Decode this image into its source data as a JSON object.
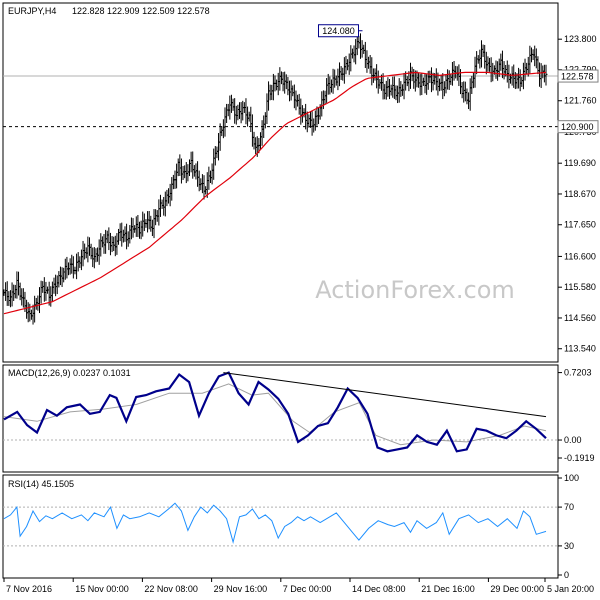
{
  "chart_data": [
    {
      "type": "bar",
      "name": "price",
      "symbol_header": "EURJPY,H4",
      "ohlc_header": "122.828 122.909 122.509 122.578",
      "ylim": [
        113.2,
        124.9
      ],
      "yticks": [
        "123.800",
        "122.790",
        "121.760",
        "120.730",
        "119.690",
        "118.670",
        "117.650",
        "116.600",
        "115.580",
        "114.560",
        "113.540"
      ],
      "ytick_values": [
        123.8,
        122.79,
        121.76,
        120.73,
        119.69,
        118.67,
        117.65,
        116.6,
        115.58,
        114.56,
        113.54
      ],
      "last_price_label": "122.578",
      "last_price": 122.578,
      "level_label": "120.900",
      "level": 120.9,
      "peak_label": "124.080",
      "peak": 124.08,
      "price_path": [
        [
          0,
          115.4
        ],
        [
          4,
          115.2
        ],
        [
          8,
          115.7
        ],
        [
          12,
          115.1
        ],
        [
          16,
          114.6
        ],
        [
          20,
          115.0
        ],
        [
          24,
          115.6
        ],
        [
          28,
          115.3
        ],
        [
          32,
          115.7
        ],
        [
          36,
          116.0
        ],
        [
          40,
          116.3
        ],
        [
          44,
          116.2
        ],
        [
          48,
          116.6
        ],
        [
          52,
          116.9
        ],
        [
          56,
          116.5
        ],
        [
          60,
          117.0
        ],
        [
          64,
          117.2
        ],
        [
          68,
          116.9
        ],
        [
          72,
          117.4
        ],
        [
          76,
          117.2
        ],
        [
          80,
          117.6
        ],
        [
          84,
          117.5
        ],
        [
          88,
          117.8
        ],
        [
          92,
          117.6
        ],
        [
          96,
          118.2
        ],
        [
          100,
          118.4
        ],
        [
          104,
          118.9
        ],
        [
          108,
          119.6
        ],
        [
          112,
          119.3
        ],
        [
          116,
          119.7
        ],
        [
          120,
          119.2
        ],
        [
          124,
          118.8
        ],
        [
          128,
          119.3
        ],
        [
          132,
          120.2
        ],
        [
          136,
          121.0
        ],
        [
          140,
          121.7
        ],
        [
          144,
          121.3
        ],
        [
          148,
          121.5
        ],
        [
          152,
          121.2
        ],
        [
          156,
          120.1
        ],
        [
          160,
          120.7
        ],
        [
          164,
          122.0
        ],
        [
          168,
          122.3
        ],
        [
          172,
          122.5
        ],
        [
          176,
          122.2
        ],
        [
          180,
          121.9
        ],
        [
          184,
          121.4
        ],
        [
          188,
          121.1
        ],
        [
          192,
          121.0
        ],
        [
          196,
          121.5
        ],
        [
          200,
          122.2
        ],
        [
          204,
          122.4
        ],
        [
          208,
          122.6
        ],
        [
          212,
          122.9
        ],
        [
          216,
          123.3
        ],
        [
          220,
          123.7
        ],
        [
          224,
          123.2
        ],
        [
          228,
          122.7
        ],
        [
          232,
          122.4
        ],
        [
          236,
          122.1
        ],
        [
          240,
          122.2
        ],
        [
          244,
          122.0
        ],
        [
          248,
          122.3
        ],
        [
          252,
          122.6
        ],
        [
          256,
          122.4
        ],
        [
          260,
          122.3
        ],
        [
          264,
          122.5
        ],
        [
          268,
          122.4
        ],
        [
          272,
          122.2
        ],
        [
          276,
          122.5
        ],
        [
          280,
          122.8
        ],
        [
          284,
          122.1
        ],
        [
          288,
          121.8
        ],
        [
          292,
          122.9
        ],
        [
          296,
          123.4
        ],
        [
          300,
          122.9
        ],
        [
          304,
          122.7
        ],
        [
          308,
          123.0
        ],
        [
          312,
          122.6
        ],
        [
          316,
          122.5
        ],
        [
          320,
          122.4
        ],
        [
          324,
          122.9
        ],
        [
          328,
          123.4
        ],
        [
          332,
          122.6
        ],
        [
          336,
          122.7
        ]
      ],
      "ma_path": [
        [
          0,
          114.7
        ],
        [
          30,
          115.1
        ],
        [
          60,
          115.9
        ],
        [
          90,
          116.9
        ],
        [
          110,
          117.8
        ],
        [
          125,
          118.6
        ],
        [
          140,
          119.2
        ],
        [
          155,
          119.9
        ],
        [
          165,
          120.5
        ],
        [
          175,
          121.0
        ],
        [
          190,
          121.4
        ],
        [
          205,
          121.8
        ],
        [
          215,
          122.2
        ],
        [
          225,
          122.5
        ],
        [
          240,
          122.6
        ],
        [
          255,
          122.7
        ],
        [
          270,
          122.6
        ],
        [
          285,
          122.7
        ],
        [
          300,
          122.7
        ],
        [
          315,
          122.6
        ],
        [
          336,
          122.7
        ]
      ]
    },
    {
      "type": "line",
      "name": "macd",
      "header": "MACD(12,26,9) 0.0237 0.1031",
      "ylim": [
        -0.32,
        0.78
      ],
      "yticks": [
        "0.7203",
        "0.00",
        "-0.1919"
      ],
      "ytick_values": [
        0.7203,
        0.0,
        -0.1919
      ],
      "series": [
        {
          "values": [
            [
              0,
              0.22
            ],
            [
              8,
              0.3
            ],
            [
              14,
              0.16
            ],
            [
              20,
              0.08
            ],
            [
              26,
              0.32
            ],
            [
              32,
              0.26
            ],
            [
              38,
              0.35
            ],
            [
              46,
              0.38
            ],
            [
              52,
              0.28
            ],
            [
              58,
              0.3
            ],
            [
              64,
              0.48
            ],
            [
              68,
              0.45
            ],
            [
              74,
              0.2
            ],
            [
              80,
              0.46
            ],
            [
              86,
              0.48
            ],
            [
              92,
              0.52
            ],
            [
              100,
              0.55
            ],
            [
              106,
              0.7
            ],
            [
              112,
              0.62
            ],
            [
              118,
              0.26
            ],
            [
              124,
              0.5
            ],
            [
              130,
              0.68
            ],
            [
              136,
              0.72
            ],
            [
              142,
              0.5
            ],
            [
              148,
              0.38
            ],
            [
              154,
              0.62
            ],
            [
              160,
              0.54
            ],
            [
              166,
              0.44
            ],
            [
              172,
              0.28
            ],
            [
              178,
              -0.02
            ],
            [
              184,
              0.05
            ],
            [
              190,
              0.15
            ],
            [
              196,
              0.18
            ],
            [
              202,
              0.35
            ],
            [
              208,
              0.55
            ],
            [
              214,
              0.45
            ],
            [
              220,
              0.28
            ],
            [
              226,
              -0.08
            ],
            [
              232,
              -0.12
            ],
            [
              238,
              -0.1
            ],
            [
              244,
              -0.08
            ],
            [
              250,
              0.05
            ],
            [
              256,
              -0.02
            ],
            [
              262,
              -0.05
            ],
            [
              268,
              0.1
            ],
            [
              274,
              -0.12
            ],
            [
              280,
              -0.1
            ],
            [
              286,
              0.12
            ],
            [
              292,
              0.1
            ],
            [
              298,
              0.05
            ],
            [
              304,
              0.02
            ],
            [
              310,
              0.1
            ],
            [
              316,
              0.2
            ],
            [
              322,
              0.12
            ],
            [
              328,
              0.02
            ]
          ]
        },
        {
          "values": [
            [
              0,
              0.25
            ],
            [
              20,
              0.2
            ],
            [
              40,
              0.3
            ],
            [
              60,
              0.33
            ],
            [
              80,
              0.38
            ],
            [
              100,
              0.5
            ],
            [
              120,
              0.5
            ],
            [
              136,
              0.6
            ],
            [
              150,
              0.48
            ],
            [
              160,
              0.5
            ],
            [
              175,
              0.2
            ],
            [
              185,
              0.08
            ],
            [
              200,
              0.3
            ],
            [
              215,
              0.4
            ],
            [
              225,
              0.05
            ],
            [
              240,
              -0.05
            ],
            [
              260,
              0.0
            ],
            [
              280,
              -0.02
            ],
            [
              300,
              0.05
            ],
            [
              315,
              0.15
            ],
            [
              328,
              0.1
            ]
          ]
        }
      ],
      "trendline": [
        [
          136,
          0.72
        ],
        [
          336,
          0.25
        ]
      ]
    },
    {
      "type": "line",
      "name": "rsi",
      "header": "RSI(14) 45.1505",
      "ylim": [
        0,
        100
      ],
      "yticks": [
        "100",
        "70",
        "30",
        "0"
      ],
      "ytick_values": [
        100,
        70,
        30,
        0
      ],
      "levels": [
        70,
        30
      ],
      "values": [
        [
          0,
          58
        ],
        [
          4,
          62
        ],
        [
          8,
          70
        ],
        [
          10,
          40
        ],
        [
          14,
          50
        ],
        [
          18,
          66
        ],
        [
          22,
          55
        ],
        [
          26,
          61
        ],
        [
          30,
          58
        ],
        [
          36,
          64
        ],
        [
          42,
          58
        ],
        [
          48,
          62
        ],
        [
          52,
          56
        ],
        [
          56,
          64
        ],
        [
          62,
          60
        ],
        [
          66,
          70
        ],
        [
          70,
          48
        ],
        [
          74,
          62
        ],
        [
          78,
          58
        ],
        [
          84,
          60
        ],
        [
          90,
          64
        ],
        [
          96,
          60
        ],
        [
          102,
          68
        ],
        [
          106,
          74
        ],
        [
          110,
          66
        ],
        [
          114,
          46
        ],
        [
          118,
          60
        ],
        [
          122,
          70
        ],
        [
          126,
          64
        ],
        [
          130,
          72
        ],
        [
          134,
          66
        ],
        [
          138,
          58
        ],
        [
          142,
          34
        ],
        [
          146,
          60
        ],
        [
          150,
          62
        ],
        [
          154,
          68
        ],
        [
          158,
          58
        ],
        [
          162,
          62
        ],
        [
          166,
          56
        ],
        [
          170,
          38
        ],
        [
          174,
          50
        ],
        [
          178,
          54
        ],
        [
          182,
          60
        ],
        [
          186,
          56
        ],
        [
          190,
          60
        ],
        [
          196,
          54
        ],
        [
          202,
          60
        ],
        [
          206,
          64
        ],
        [
          212,
          52
        ],
        [
          216,
          44
        ],
        [
          220,
          36
        ],
        [
          226,
          48
        ],
        [
          232,
          56
        ],
        [
          238,
          52
        ],
        [
          242,
          50
        ],
        [
          248,
          54
        ],
        [
          252,
          44
        ],
        [
          256,
          56
        ],
        [
          262,
          48
        ],
        [
          268,
          54
        ],
        [
          272,
          64
        ],
        [
          276,
          42
        ],
        [
          282,
          58
        ],
        [
          288,
          62
        ],
        [
          294,
          54
        ],
        [
          300,
          58
        ],
        [
          306,
          50
        ],
        [
          312,
          58
        ],
        [
          318,
          48
        ],
        [
          322,
          66
        ],
        [
          326,
          60
        ],
        [
          330,
          42
        ],
        [
          336,
          45
        ]
      ]
    }
  ],
  "x_axis": {
    "labels": [
      "7 Nov 2016",
      "15 Nov 00:00",
      "22 Nov 08:00",
      "29 Nov 16:00",
      "7 Dec 00:00",
      "14 Dec 08:00",
      "21 Dec 16:00",
      "29 Dec 00:00",
      "5 Jan 20:00"
    ],
    "label_index": [
      0,
      44,
      88,
      132,
      176,
      220,
      264,
      308,
      344
    ],
    "bar_count": 337
  },
  "watermark": "ActionForex.com",
  "colors": {
    "price": "#000000",
    "ma": "#e0000b",
    "macd": "#00008b",
    "macd_signal": "#a0a0a0",
    "trendline": "#000000",
    "rsi": "#1e90ff",
    "level": "#000000",
    "peak_box": "#00008b",
    "panel_border": "#000000",
    "watermark": "#c8c8c8"
  }
}
